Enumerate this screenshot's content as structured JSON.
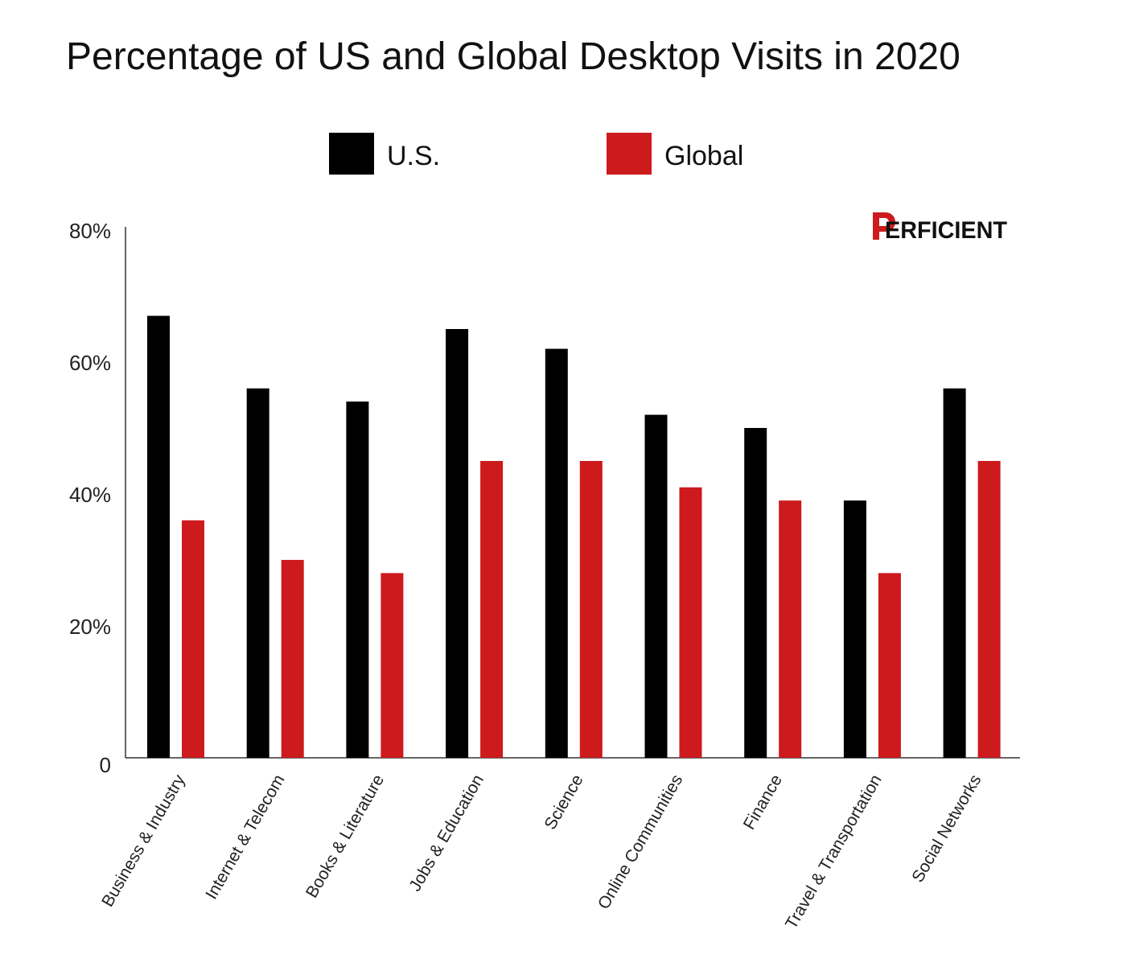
{
  "chart_data": {
    "type": "bar",
    "title": "Percentage of US and Global Desktop Visits in 2020",
    "categories": [
      "Business & Industry",
      "Internet & Telecom",
      "Books & Literature",
      "Jobs & Education",
      "Science",
      "Online Communities",
      "Finance",
      "Travel & Transportation",
      "Social Networks"
    ],
    "series": [
      {
        "name": "U.S.",
        "color": "#000000",
        "values": [
          67,
          56,
          54,
          65,
          62,
          52,
          50,
          39,
          56
        ]
      },
      {
        "name": "Global",
        "color": "#cc1a1d",
        "values": [
          36,
          30,
          28,
          45,
          45,
          41,
          39,
          28,
          45
        ]
      }
    ],
    "ylim": [
      0,
      80
    ],
    "yticks": [
      {
        "value": 0,
        "label": "0"
      },
      {
        "value": 20,
        "label": "20%"
      },
      {
        "value": 40,
        "label": "40%"
      },
      {
        "value": 60,
        "label": "60%"
      },
      {
        "value": 80,
        "label": "80%"
      }
    ],
    "xlabel": "",
    "ylabel": "",
    "grid": false,
    "legend_position": "top-center"
  },
  "logo": {
    "text": "PERFICIENT",
    "color": "#cc1a1d"
  }
}
